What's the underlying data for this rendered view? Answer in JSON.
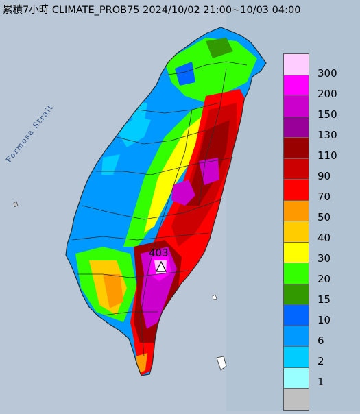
{
  "title": "累積7小時 CLIMATE_PROB75 2024/10/02 21:00~10/03 04:00",
  "sea_label": "Formosa Strait",
  "peak": {
    "value": "403",
    "marker_icon": "triangle-icon"
  },
  "colors": {
    "sea": "#b9c7d6",
    "border": "#2a2a2a"
  },
  "legend": [
    {
      "label": "300",
      "color": "#ffccff"
    },
    {
      "label": "200",
      "color": "#ff00ff"
    },
    {
      "label": "150",
      "color": "#cc00cc"
    },
    {
      "label": "130",
      "color": "#990099"
    },
    {
      "label": "110",
      "color": "#990000"
    },
    {
      "label": "90",
      "color": "#cc0000"
    },
    {
      "label": "70",
      "color": "#ff0000"
    },
    {
      "label": "50",
      "color": "#ff9900"
    },
    {
      "label": "40",
      "color": "#ffcc00"
    },
    {
      "label": "30",
      "color": "#ffff00"
    },
    {
      "label": "20",
      "color": "#33ff00"
    },
    {
      "label": "15",
      "color": "#339900"
    },
    {
      "label": "10",
      "color": "#0066ff"
    },
    {
      "label": "6",
      "color": "#0099ff"
    },
    {
      "label": "2",
      "color": "#00ccff"
    },
    {
      "label": "1",
      "color": "#99ffff"
    },
    {
      "label": "",
      "color": "#c0c0c0"
    }
  ]
}
